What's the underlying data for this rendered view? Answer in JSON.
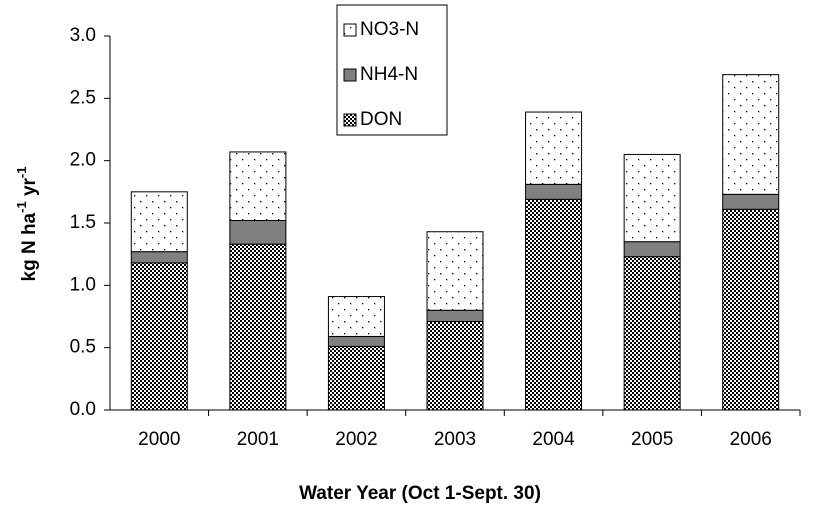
{
  "chart_data": {
    "type": "stacked-bar",
    "xlabel": "Water Year (Oct 1-Sept. 30)",
    "ylabel": [
      "kg N ha",
      "-1",
      " yr",
      "-1"
    ],
    "categories": [
      "2000",
      "2001",
      "2002",
      "2003",
      "2004",
      "2005",
      "2006"
    ],
    "series": [
      {
        "name": "DON",
        "color": "#000000",
        "pattern": "checker",
        "values": [
          1.18,
          1.33,
          0.51,
          0.71,
          1.69,
          1.23,
          1.61
        ]
      },
      {
        "name": "NH4-N",
        "color": "#808080",
        "pattern": "solid",
        "values": [
          0.09,
          0.19,
          0.08,
          0.09,
          0.12,
          0.12,
          0.12
        ]
      },
      {
        "name": "NO3-N",
        "color": "#ffffff",
        "pattern": "dots",
        "values": [
          0.48,
          0.55,
          0.32,
          0.63,
          0.58,
          0.7,
          0.96
        ]
      }
    ],
    "ylim": [
      0,
      3
    ],
    "yticks": [
      {
        "value": 0,
        "label": "0.0"
      },
      {
        "value": 0.5,
        "label": "0.5"
      },
      {
        "value": 1,
        "label": "1.0"
      },
      {
        "value": 1.5,
        "label": "1.5"
      },
      {
        "value": 2,
        "label": "2.0"
      },
      {
        "value": 2.5,
        "label": "2.5"
      },
      {
        "value": 3,
        "label": "3.0"
      }
    ],
    "grid": false,
    "legend": "top"
  }
}
